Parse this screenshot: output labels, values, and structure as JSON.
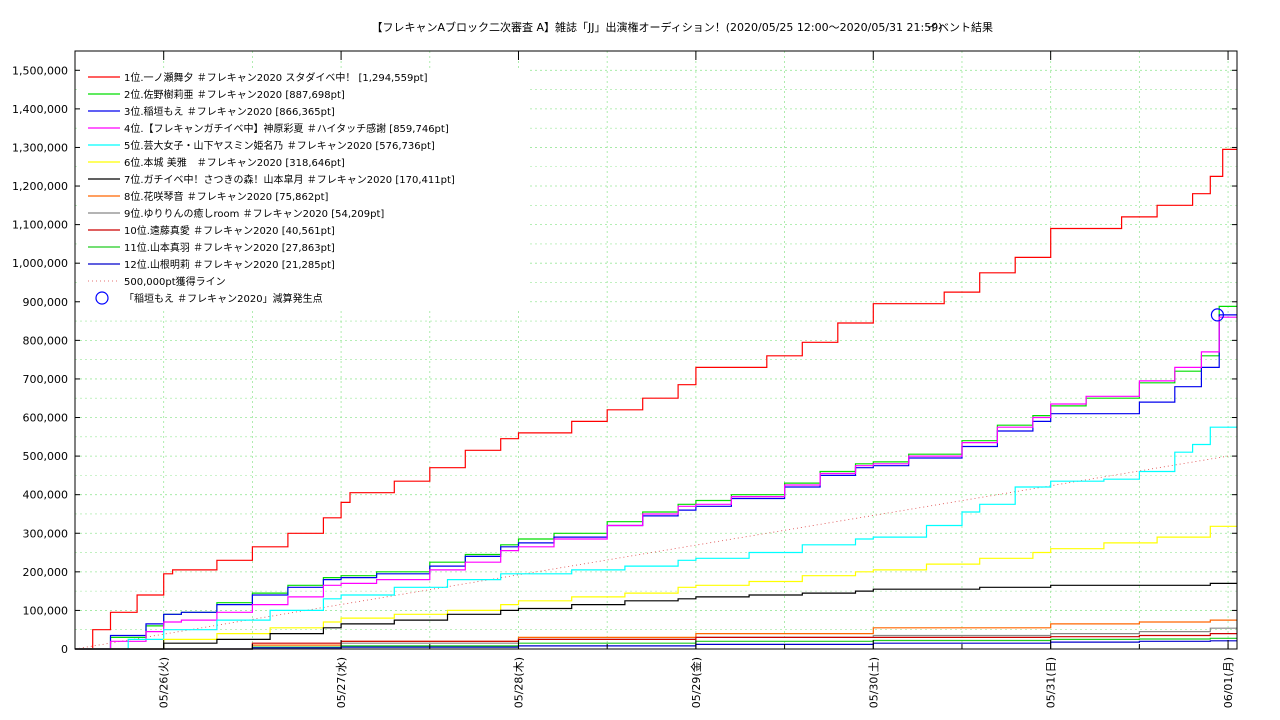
{
  "chart_data": {
    "type": "line",
    "title": "【フレキャンAブロック二次審査 A】雑誌「JJ」出演権オーディション！(2020/05/25 12:00〜2020/05/31 21:59)",
    "title_suffix": "イベント結果",
    "xlabel": "",
    "ylabel": "",
    "xlim": [
      "2020-05-25 12:00",
      "2020-06-01 00:15"
    ],
    "ylim": [
      0,
      1550000
    ],
    "x_ticks": [
      "05/26(火)",
      "05/27(水)",
      "05/28(木)",
      "05/29(金)",
      "05/30(土)",
      "05/31(日)",
      "06/01(月)"
    ],
    "y_ticks": [
      "0",
      "100,000",
      "200,000",
      "300,000",
      "400,000",
      "500,000",
      "600,000",
      "700,000",
      "800,000",
      "900,000",
      "1,000,000",
      "1,100,000",
      "1,200,000",
      "1,300,000",
      "1,400,000",
      "1,500,000"
    ],
    "y_tick_values": [
      0,
      100000,
      200000,
      300000,
      400000,
      500000,
      600000,
      700000,
      800000,
      900000,
      1000000,
      1100000,
      1200000,
      1300000,
      1400000,
      1500000
    ],
    "grid": true,
    "legend_position": "top-left",
    "x_unit_note": "x values are days after 2020-05-25 00:00 (0.5 = 05/25 12:00, 7 = 06/01 00:00)",
    "series": [
      {
        "name": "1位.一ノ瀬舞夕 ＃フレキャン2020 スタダイベ中！ [1,294,559pt]",
        "color": "#ff0000",
        "x": [
          0.5,
          0.6,
          0.7,
          0.85,
          1.0,
          1.05,
          1.1,
          1.3,
          1.5,
          1.7,
          1.9,
          2.0,
          2.05,
          2.1,
          2.3,
          2.5,
          2.7,
          2.9,
          3.0,
          3.3,
          3.5,
          3.7,
          3.9,
          4.0,
          4.2,
          4.4,
          4.6,
          4.8,
          5.0,
          5.2,
          5.4,
          5.6,
          5.8,
          6.0,
          6.2,
          6.4,
          6.6,
          6.8,
          6.9,
          6.97,
          7.05
        ],
        "y": [
          0,
          50000,
          95000,
          140000,
          195000,
          205000,
          205000,
          230000,
          265000,
          300000,
          340000,
          380000,
          405000,
          405000,
          435000,
          470000,
          515000,
          545000,
          560000,
          590000,
          620000,
          650000,
          685000,
          730000,
          730000,
          760000,
          795000,
          845000,
          895000,
          895000,
          925000,
          975000,
          1015000,
          1090000,
          1090000,
          1120000,
          1150000,
          1180000,
          1225000,
          1295000,
          1295000
        ]
      },
      {
        "name": "2位.佐野樹莉亜 ＃フレキャン2020 [887,698pt]",
        "color": "#00dd00",
        "x": [
          0.5,
          0.7,
          0.9,
          1.0,
          1.1,
          1.3,
          1.5,
          1.7,
          1.9,
          2.0,
          2.2,
          2.5,
          2.7,
          2.9,
          3.0,
          3.2,
          3.5,
          3.7,
          3.9,
          4.0,
          4.2,
          4.5,
          4.7,
          4.9,
          5.0,
          5.2,
          5.5,
          5.7,
          5.9,
          6.0,
          6.2,
          6.5,
          6.7,
          6.85,
          6.95,
          7.05
        ],
        "y": [
          0,
          30000,
          60000,
          90000,
          95000,
          120000,
          145000,
          165000,
          185000,
          190000,
          200000,
          225000,
          245000,
          270000,
          285000,
          300000,
          330000,
          355000,
          375000,
          385000,
          400000,
          430000,
          460000,
          480000,
          485000,
          505000,
          540000,
          580000,
          605000,
          630000,
          650000,
          690000,
          720000,
          760000,
          888000,
          888000
        ]
      },
      {
        "name": "3位.稲垣もえ ＃フレキャン2020 [866,365pt]",
        "color": "#0000ee",
        "x": [
          0.5,
          0.7,
          0.9,
          1.0,
          1.1,
          1.3,
          1.5,
          1.7,
          1.9,
          2.0,
          2.2,
          2.5,
          2.7,
          2.9,
          3.0,
          3.2,
          3.5,
          3.7,
          3.9,
          4.0,
          4.2,
          4.5,
          4.7,
          4.9,
          5.0,
          5.2,
          5.5,
          5.7,
          5.9,
          6.0,
          6.2,
          6.5,
          6.7,
          6.85,
          6.95,
          7.05
        ],
        "y": [
          0,
          35000,
          65000,
          90000,
          95000,
          115000,
          140000,
          160000,
          180000,
          185000,
          195000,
          215000,
          240000,
          265000,
          275000,
          290000,
          320000,
          345000,
          360000,
          370000,
          390000,
          420000,
          450000,
          470000,
          475000,
          495000,
          525000,
          565000,
          590000,
          610000,
          610000,
          640000,
          680000,
          730000,
          866000,
          866000
        ]
      },
      {
        "name": "4位.【フレキャンガチイベ中】神原彩夏 ＃ハイタッチ感謝 [859,746pt]",
        "color": "#ff00ff",
        "x": [
          0.5,
          0.7,
          0.9,
          1.0,
          1.1,
          1.3,
          1.5,
          1.7,
          1.9,
          2.0,
          2.2,
          2.5,
          2.7,
          2.9,
          3.0,
          3.2,
          3.5,
          3.7,
          3.9,
          4.0,
          4.2,
          4.5,
          4.7,
          4.9,
          5.0,
          5.2,
          5.5,
          5.7,
          5.9,
          6.0,
          6.2,
          6.5,
          6.7,
          6.85,
          6.95,
          7.05
        ],
        "y": [
          0,
          20000,
          45000,
          70000,
          75000,
          95000,
          115000,
          135000,
          165000,
          170000,
          180000,
          205000,
          225000,
          255000,
          265000,
          285000,
          320000,
          350000,
          370000,
          375000,
          395000,
          425000,
          455000,
          475000,
          480000,
          500000,
          535000,
          575000,
          600000,
          635000,
          655000,
          695000,
          730000,
          770000,
          860000,
          860000
        ]
      },
      {
        "name": "5位.芸大女子・山下ヤスミン姫名乃 ＃フレキャン2020 [576,736pt]",
        "color": "#00ffff",
        "x": [
          0.5,
          0.8,
          1.0,
          1.3,
          1.6,
          1.9,
          2.0,
          2.3,
          2.6,
          2.9,
          3.0,
          3.3,
          3.6,
          3.9,
          4.0,
          4.3,
          4.6,
          4.9,
          5.0,
          5.3,
          5.5,
          5.6,
          5.8,
          6.0,
          6.3,
          6.5,
          6.7,
          6.8,
          6.9,
          7.05
        ],
        "y": [
          0,
          25000,
          50000,
          75000,
          100000,
          130000,
          140000,
          160000,
          180000,
          195000,
          195000,
          205000,
          215000,
          230000,
          235000,
          250000,
          270000,
          285000,
          290000,
          320000,
          355000,
          375000,
          420000,
          435000,
          440000,
          460000,
          510000,
          530000,
          575000,
          577000
        ]
      },
      {
        "name": "6位.本城 美雅　＃フレキャン2020 [318,646pt]",
        "color": "#ffff00",
        "x": [
          0.5,
          1.0,
          1.3,
          1.6,
          1.9,
          2.0,
          2.3,
          2.6,
          2.9,
          3.0,
          3.3,
          3.6,
          3.9,
          4.0,
          4.3,
          4.6,
          4.9,
          5.0,
          5.3,
          5.6,
          5.9,
          6.0,
          6.3,
          6.6,
          6.9,
          7.05
        ],
        "y": [
          0,
          25000,
          40000,
          55000,
          70000,
          80000,
          90000,
          100000,
          115000,
          125000,
          135000,
          145000,
          160000,
          165000,
          175000,
          190000,
          200000,
          205000,
          220000,
          235000,
          250000,
          260000,
          275000,
          290000,
          318000,
          319000
        ]
      },
      {
        "name": "7位.ガチイベ中！さつきの森！山本皐月 ＃フレキャン2020 [170,411pt]",
        "color": "#000000",
        "x": [
          0.5,
          1.0,
          1.3,
          1.6,
          1.9,
          2.0,
          2.3,
          2.6,
          2.9,
          3.0,
          3.3,
          3.6,
          3.9,
          4.0,
          4.3,
          4.6,
          4.9,
          5.0,
          5.3,
          5.6,
          5.9,
          6.0,
          6.3,
          6.6,
          6.9,
          7.05
        ],
        "y": [
          0,
          15000,
          25000,
          40000,
          55000,
          65000,
          75000,
          90000,
          100000,
          105000,
          115000,
          125000,
          130000,
          135000,
          140000,
          145000,
          150000,
          155000,
          155000,
          160000,
          160000,
          165000,
          165000,
          165000,
          170000,
          170411
        ]
      },
      {
        "name": "8位.花咲琴音 ＃フレキャン2020 [75,862pt]",
        "color": "#ff6600",
        "x": [
          0.5,
          1.5,
          2.0,
          3.0,
          4.0,
          5.0,
          6.0,
          6.5,
          6.9,
          7.05
        ],
        "y": [
          0,
          10000,
          20000,
          30000,
          40000,
          55000,
          65000,
          70000,
          75000,
          75862
        ]
      },
      {
        "name": "9位.ゆりりんの癒しroom ＃フレキャン2020 [54,209pt]",
        "color": "#888888",
        "x": [
          0.5,
          1.5,
          2.0,
          3.0,
          4.0,
          5.0,
          6.0,
          6.5,
          6.9,
          7.05
        ],
        "y": [
          0,
          5000,
          15000,
          25000,
          30000,
          35000,
          40000,
          45000,
          54000,
          54209
        ]
      },
      {
        "name": "10位.遠藤真愛 ＃フレキャン2020 [40,561pt]",
        "color": "#cc0000",
        "x": [
          0.5,
          1.5,
          2.0,
          3.0,
          4.0,
          5.0,
          6.0,
          6.5,
          6.9,
          7.05
        ],
        "y": [
          0,
          15000,
          20000,
          25000,
          30000,
          30000,
          32000,
          35000,
          40000,
          40561
        ]
      },
      {
        "name": "11位.山本真羽 ＃フレキャン2020 [27,863pt]",
        "color": "#22cc22",
        "x": [
          0.5,
          1.5,
          2.0,
          3.0,
          4.0,
          5.0,
          6.0,
          6.5,
          6.9,
          7.05
        ],
        "y": [
          0,
          5000,
          8000,
          15000,
          20000,
          22000,
          25000,
          26000,
          27800,
          27863
        ]
      },
      {
        "name": "12位.山根明莉 ＃フレキャン2020 [21,285pt]",
        "color": "#0000cc",
        "x": [
          0.5,
          1.5,
          2.0,
          3.0,
          4.0,
          5.0,
          6.0,
          6.5,
          6.9,
          7.05
        ],
        "y": [
          0,
          3000,
          5000,
          8000,
          12000,
          15000,
          18000,
          20000,
          21200,
          21285
        ]
      }
    ],
    "reference_line": {
      "name": "500,000pt獲得ライン",
      "color": "#dd4444",
      "y_at_end": 500000
    },
    "annotation": {
      "name": "「稲垣もえ ＃フレキャン2020」減算発生点",
      "color": "#0000ff",
      "x": 6.94,
      "y": 866000
    }
  }
}
